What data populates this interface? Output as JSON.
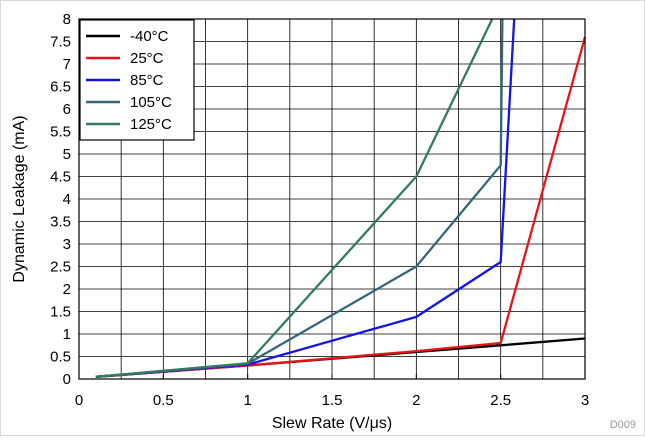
{
  "chart_data": {
    "type": "line",
    "title": "",
    "xlabel": "Slew Rate (V/μs)",
    "ylabel": "Dynamic Leakage (mA)",
    "xlim": [
      0,
      3
    ],
    "ylim": [
      0,
      8
    ],
    "x_ticks": [
      0,
      0.5,
      1,
      1.5,
      2,
      2.5,
      3
    ],
    "x_tick_labels": [
      "0",
      "0.5",
      "1",
      "1.5",
      "2",
      "2.5",
      "3"
    ],
    "y_ticks": [
      0,
      0.5,
      1,
      1.5,
      2,
      2.5,
      3,
      3.5,
      4,
      4.5,
      5,
      5.5,
      6,
      6.5,
      7,
      7.5,
      8
    ],
    "y_tick_labels": [
      "0",
      "0.5",
      "1",
      "1.5",
      "2",
      "2.5",
      "3",
      "3.5",
      "4",
      "4.5",
      "5",
      "5.5",
      "6",
      "6.5",
      "7",
      "7.5",
      "8"
    ],
    "x_minor_step": 0.25,
    "grid": true,
    "legend_position": "top-left",
    "series": [
      {
        "name": "-40°C",
        "color": "#000000",
        "x": [
          0.1,
          1.0,
          2.0,
          2.5,
          3.0
        ],
        "y": [
          0.05,
          0.3,
          0.6,
          0.75,
          0.9
        ]
      },
      {
        "name": "25°C",
        "color": "#e8141b",
        "x": [
          0.1,
          1.0,
          2.0,
          2.5,
          3.0
        ],
        "y": [
          0.05,
          0.3,
          0.62,
          0.8,
          7.6
        ]
      },
      {
        "name": "85°C",
        "color": "#1414e6",
        "x": [
          0.1,
          1.0,
          2.0,
          2.5,
          2.58
        ],
        "y": [
          0.05,
          0.32,
          1.38,
          2.6,
          8.0
        ]
      },
      {
        "name": "105°C",
        "color": "#346678",
        "x": [
          0.1,
          1.0,
          2.0,
          2.5,
          2.51
        ],
        "y": [
          0.05,
          0.34,
          2.5,
          4.75,
          8.0
        ]
      },
      {
        "name": "125°C",
        "color": "#347a60",
        "x": [
          0.1,
          1.0,
          2.0,
          2.45
        ],
        "y": [
          0.05,
          0.35,
          4.5,
          8.0
        ]
      }
    ],
    "annotation": "D009"
  }
}
